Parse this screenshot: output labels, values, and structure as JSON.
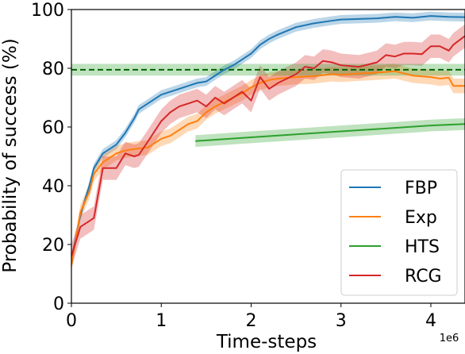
{
  "chart_data": {
    "type": "line",
    "xlabel": "Time-steps",
    "ylabel": "Probability of success (%)",
    "x_offset_label": "1e6",
    "xlim": [
      0,
      4.38
    ],
    "ylim": [
      0,
      100
    ],
    "xticks": [
      0,
      1,
      2,
      3,
      4
    ],
    "xtick_labels": [
      "0",
      "1",
      "2",
      "3",
      "4"
    ],
    "yticks": [
      0,
      20,
      40,
      60,
      80,
      100
    ],
    "ytick_labels": [
      "0",
      "20",
      "40",
      "60",
      "80",
      "100"
    ],
    "grid": false,
    "legend_position": "lower-right",
    "reference_line": {
      "y": 79.5,
      "style": "dashed",
      "color": "#2ca02c",
      "band": [
        77.5,
        81.5
      ]
    },
    "series": [
      {
        "name": "FBP",
        "color": "#1f77b4",
        "x": [
          0,
          0.1,
          0.2,
          0.25,
          0.35,
          0.5,
          0.6,
          0.7,
          0.75,
          0.85,
          1.0,
          1.1,
          1.2,
          1.3,
          1.4,
          1.5,
          1.6,
          1.7,
          1.8,
          1.9,
          2.0,
          2.1,
          2.2,
          2.3,
          2.5,
          2.7,
          2.9,
          3.0,
          3.2,
          3.4,
          3.6,
          3.8,
          4.0,
          4.2,
          4.38
        ],
        "y": [
          15,
          30,
          40,
          46,
          51,
          54,
          58,
          63,
          66,
          68,
          71,
          72,
          73,
          74,
          75,
          75.5,
          77.5,
          79.5,
          81,
          83,
          85,
          88,
          90,
          91.5,
          94,
          95.3,
          96.2,
          96.6,
          96.8,
          97,
          97.5,
          97.2,
          97.8,
          97.5,
          97.4
        ],
        "band": 1.5
      },
      {
        "name": "Exp",
        "color": "#ff7f0e",
        "x": [
          0,
          0.1,
          0.2,
          0.25,
          0.35,
          0.5,
          0.6,
          0.7,
          0.85,
          1.0,
          1.1,
          1.2,
          1.3,
          1.4,
          1.5,
          1.6,
          1.7,
          1.8,
          1.9,
          2.0,
          2.1,
          2.2,
          2.3,
          2.5,
          2.7,
          2.9,
          3.0,
          3.2,
          3.4,
          3.6,
          3.8,
          4.0,
          4.1,
          4.2,
          4.25,
          4.38
        ],
        "y": [
          13,
          31,
          38,
          44,
          48,
          51,
          52,
          52.5,
          53,
          56,
          57,
          59,
          61,
          62,
          65,
          67,
          68.5,
          70,
          71.5,
          73.5,
          75,
          76,
          76.5,
          77,
          77.3,
          78,
          77.8,
          78.2,
          78.5,
          79,
          77.5,
          77,
          76.5,
          76.8,
          74,
          74
        ],
        "band": 2.5
      },
      {
        "name": "HTS",
        "color": "#2ca02c",
        "x": [
          1.38,
          2.0,
          2.5,
          3.0,
          3.5,
          4.0,
          4.38
        ],
        "y": [
          55.2,
          56.5,
          57.5,
          58.5,
          59.5,
          60.5,
          61
        ],
        "band": 2
      },
      {
        "name": "RCG",
        "color": "#d62728",
        "x": [
          0,
          0.1,
          0.2,
          0.25,
          0.35,
          0.5,
          0.6,
          0.7,
          0.75,
          0.85,
          1.0,
          1.1,
          1.2,
          1.3,
          1.4,
          1.5,
          1.6,
          1.7,
          1.8,
          1.9,
          2.0,
          2.1,
          2.2,
          2.3,
          2.5,
          2.6,
          2.7,
          2.8,
          2.9,
          3.0,
          3.2,
          3.4,
          3.5,
          3.6,
          3.7,
          3.8,
          3.9,
          4.0,
          4.1,
          4.2,
          4.25,
          4.38
        ],
        "y": [
          16,
          26,
          28,
          29,
          46,
          46,
          51,
          50,
          50.5,
          55,
          62,
          65,
          67,
          68,
          69,
          67,
          70,
          68,
          70,
          72,
          69,
          77,
          73,
          75,
          78,
          80.5,
          80,
          82.5,
          82,
          81,
          80.5,
          82,
          84.5,
          84,
          85,
          85,
          84.8,
          87.5,
          87.5,
          86,
          88,
          91
        ],
        "band": 4
      }
    ]
  }
}
